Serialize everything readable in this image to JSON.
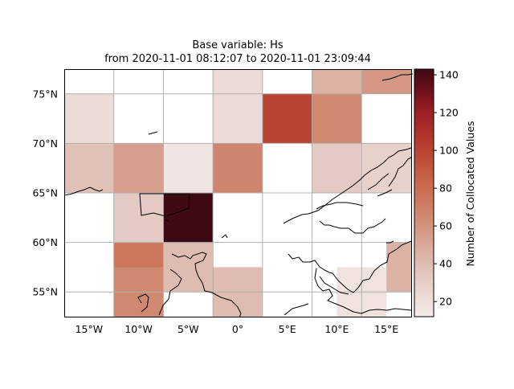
{
  "chart_data": {
    "type": "heatmap",
    "title_line1": "Base variable: Hs",
    "title_line2": "from 2020-11-01 08:12:07 to 2020-11-01 23:09:44",
    "x_ticks": [
      "15°W",
      "10°W",
      "5°W",
      "0°",
      "5°E",
      "10°E",
      "15°E"
    ],
    "x_tick_values": [
      -15,
      -10,
      -5,
      0,
      5,
      10,
      15
    ],
    "y_ticks": [
      "75°N",
      "70°N",
      "65°N",
      "60°N",
      "55°N"
    ],
    "y_tick_values": [
      75,
      70,
      65,
      60,
      55
    ],
    "xlim": [
      -17.5,
      17.5
    ],
    "ylim": [
      52.5,
      77.5
    ],
    "grid": true,
    "cells": [
      {
        "lon0": -12.5,
        "lat0": 75,
        "count": 0
      },
      {
        "lon0": -7.5,
        "lat0": 75,
        "count": 0
      },
      {
        "lon0": -2.5,
        "lat0": 75,
        "count": 22
      },
      {
        "lon0": 2.5,
        "lat0": 75,
        "count": 0
      },
      {
        "lon0": 7.5,
        "lat0": 75,
        "count": 45
      },
      {
        "lon0": 12.5,
        "lat0": 75,
        "count": 58
      },
      {
        "lon0": -17.5,
        "lat0": 70,
        "count": 22
      },
      {
        "lon0": -2.5,
        "lat0": 70,
        "count": 22
      },
      {
        "lon0": 2.5,
        "lat0": 70,
        "count": 100
      },
      {
        "lon0": 7.5,
        "lat0": 70,
        "count": 65
      },
      {
        "lon0": -17.5,
        "lat0": 65,
        "count": 38
      },
      {
        "lon0": -12.5,
        "lat0": 65,
        "count": 54
      },
      {
        "lon0": -7.5,
        "lat0": 65,
        "count": 17
      },
      {
        "lon0": -2.5,
        "lat0": 65,
        "count": 67
      },
      {
        "lon0": 7.5,
        "lat0": 65,
        "count": 32
      },
      {
        "lon0": 12.5,
        "lat0": 65,
        "count": 28
      },
      {
        "lon0": -12.5,
        "lat0": 60,
        "count": 32
      },
      {
        "lon0": -7.5,
        "lat0": 60,
        "count": 143
      },
      {
        "lon0": -12.5,
        "lat0": 55,
        "count": 75
      },
      {
        "lon0": -7.5,
        "lat0": 55,
        "count": 40
      },
      {
        "lon0": 15,
        "lat0": 55,
        "count": 45
      },
      {
        "lon0": -12.5,
        "lat0": 52.5,
        "count": 65
      },
      {
        "lon0": -2.5,
        "lat0": 52.5,
        "count": 40
      },
      {
        "lon0": 10,
        "lat0": 52.5,
        "count": 18
      }
    ],
    "colorbar": {
      "label": "Number of Collocated Values",
      "min": 12,
      "max": 143,
      "ticks": [
        20,
        40,
        60,
        80,
        100,
        120,
        140
      ],
      "tick_labels": [
        "20",
        "40",
        "60",
        "80",
        "100",
        "120",
        "140"
      ],
      "colormap": "white-to-darkred (amp)"
    },
    "colors": {
      "low": "#f3eceb",
      "mid": "#c96a4f",
      "high": "#3d0a14",
      "grid": "#b0b0b0",
      "coast": "#000000"
    }
  }
}
